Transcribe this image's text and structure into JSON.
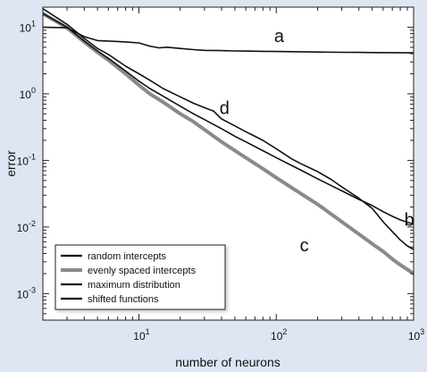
{
  "chart_data": {
    "type": "line",
    "title": "",
    "xlabel": "number of neurons",
    "ylabel": "error",
    "xscale": "log",
    "yscale": "log",
    "xlim": [
      2,
      1000
    ],
    "ylim": [
      0.0004,
      20
    ],
    "grid": false,
    "legend_position": "bottom-left",
    "x_ticks": [
      {
        "value": 10,
        "base": "10",
        "exp": "1"
      },
      {
        "value": 100,
        "base": "10",
        "exp": "2"
      },
      {
        "value": 1000,
        "base": "10",
        "exp": "3"
      }
    ],
    "y_ticks": [
      {
        "value": 0.001,
        "base": "10",
        "exp": "-3"
      },
      {
        "value": 0.01,
        "base": "10",
        "exp": "-2"
      },
      {
        "value": 0.1,
        "base": "10",
        "exp": "-1"
      },
      {
        "value": 1,
        "base": "10",
        "exp": "0"
      },
      {
        "value": 10,
        "base": "10",
        "exp": "1"
      }
    ],
    "series": [
      {
        "name": "random intercepts",
        "color": "#111111",
        "points": [
          [
            2,
            19
          ],
          [
            3,
            11
          ],
          [
            4,
            6.8
          ],
          [
            5,
            4.8
          ],
          [
            6,
            3.9
          ],
          [
            8,
            2.6
          ],
          [
            10,
            2.0
          ],
          [
            12,
            1.6
          ],
          [
            15,
            1.2
          ],
          [
            20,
            0.9
          ],
          [
            25,
            0.72
          ],
          [
            30,
            0.62
          ],
          [
            35,
            0.55
          ],
          [
            40,
            0.42
          ],
          [
            50,
            0.33
          ],
          [
            60,
            0.27
          ],
          [
            70,
            0.23
          ],
          [
            80,
            0.2
          ],
          [
            100,
            0.15
          ],
          [
            130,
            0.105
          ],
          [
            150,
            0.09
          ],
          [
            200,
            0.068
          ],
          [
            250,
            0.052
          ],
          [
            300,
            0.04
          ],
          [
            400,
            0.027
          ],
          [
            500,
            0.019
          ],
          [
            600,
            0.012
          ],
          [
            700,
            0.0085
          ],
          [
            800,
            0.0064
          ],
          [
            900,
            0.0052
          ],
          [
            1000,
            0.0046
          ]
        ]
      },
      {
        "name": "evenly spaced intercepts",
        "color": "#8a8a8a",
        "points": [
          [
            2,
            16
          ],
          [
            3,
            9.8
          ],
          [
            4,
            6
          ],
          [
            5,
            4.2
          ],
          [
            6,
            3.2
          ],
          [
            8,
            2.0
          ],
          [
            10,
            1.35
          ],
          [
            12,
            1.0
          ],
          [
            15,
            0.75
          ],
          [
            20,
            0.5
          ],
          [
            25,
            0.38
          ],
          [
            30,
            0.29
          ],
          [
            40,
            0.19
          ],
          [
            50,
            0.14
          ],
          [
            60,
            0.11
          ],
          [
            80,
            0.075
          ],
          [
            100,
            0.055
          ],
          [
            150,
            0.032
          ],
          [
            200,
            0.022
          ],
          [
            300,
            0.012
          ],
          [
            400,
            0.0078
          ],
          [
            500,
            0.0056
          ],
          [
            600,
            0.0043
          ],
          [
            700,
            0.0033
          ],
          [
            800,
            0.0027
          ],
          [
            1000,
            0.002
          ]
        ]
      },
      {
        "name": "maximum distribution",
        "color": "#111111",
        "points": [
          [
            2,
            16
          ],
          [
            3,
            10
          ],
          [
            4,
            6.2
          ],
          [
            5,
            4.4
          ],
          [
            6,
            3.4
          ],
          [
            8,
            2.2
          ],
          [
            10,
            1.55
          ],
          [
            12,
            1.2
          ],
          [
            15,
            0.92
          ],
          [
            20,
            0.65
          ],
          [
            25,
            0.5
          ],
          [
            30,
            0.41
          ],
          [
            40,
            0.3
          ],
          [
            50,
            0.23
          ],
          [
            60,
            0.19
          ],
          [
            80,
            0.14
          ],
          [
            100,
            0.11
          ],
          [
            150,
            0.072
          ],
          [
            200,
            0.053
          ],
          [
            300,
            0.035
          ],
          [
            400,
            0.026
          ],
          [
            500,
            0.021
          ],
          [
            600,
            0.017
          ],
          [
            700,
            0.0145
          ],
          [
            800,
            0.0128
          ],
          [
            1000,
            0.011
          ]
        ]
      },
      {
        "name": "shifted functions",
        "color": "#111111",
        "points": [
          [
            2,
            10
          ],
          [
            3,
            9.8
          ],
          [
            4,
            7.2
          ],
          [
            5,
            6.3
          ],
          [
            6,
            6.2
          ],
          [
            8,
            6.0
          ],
          [
            10,
            5.8
          ],
          [
            12,
            5.2
          ],
          [
            14,
            4.9
          ],
          [
            16,
            5.0
          ],
          [
            20,
            4.8
          ],
          [
            25,
            4.6
          ],
          [
            30,
            4.5
          ],
          [
            40,
            4.45
          ],
          [
            50,
            4.4
          ],
          [
            60,
            4.38
          ],
          [
            80,
            4.34
          ],
          [
            100,
            4.32
          ],
          [
            150,
            4.28
          ],
          [
            200,
            4.24
          ],
          [
            300,
            4.2
          ],
          [
            400,
            4.18
          ],
          [
            500,
            4.16
          ],
          [
            700,
            4.14
          ],
          [
            1000,
            4.12
          ]
        ]
      }
    ],
    "annotations": [
      {
        "text": "a",
        "x": 105,
        "y": 6.0
      },
      {
        "text": "b",
        "x": 930,
        "y": 0.0105
      },
      {
        "text": "c",
        "x": 160,
        "y": 0.0043
      },
      {
        "text": "d",
        "x": 42,
        "y": 0.5
      }
    ]
  }
}
